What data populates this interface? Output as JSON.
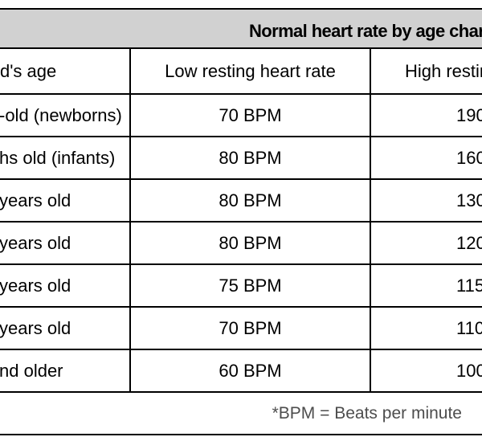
{
  "chart_data": {
    "type": "table",
    "title": "Normal heart rate by age char",
    "columns": [
      "d's age",
      "Low resting heart rate",
      "High restin"
    ],
    "rows": [
      {
        "age": "-old (newborns)",
        "low": "70 BPM",
        "high": "190"
      },
      {
        "age": "hs old (infants)",
        "low": "80 BPM",
        "high": "160"
      },
      {
        "age": "years old",
        "low": "80 BPM",
        "high": "130"
      },
      {
        "age": "years old",
        "low": "80 BPM",
        "high": "120"
      },
      {
        "age": "years old",
        "low": "75 BPM",
        "high": "115"
      },
      {
        "age": "years old",
        "low": "70 BPM",
        "high": "110"
      },
      {
        "age": "nd older",
        "low": "60 BPM",
        "high": "100"
      }
    ],
    "footnote": "*BPM = Beats per minute"
  },
  "colors": {
    "title_band_background": "#d1d1d4",
    "table_border": "#000000",
    "text": "#000000",
    "footnote_text": "#4d4d4d",
    "page_background": "#ffffff"
  }
}
